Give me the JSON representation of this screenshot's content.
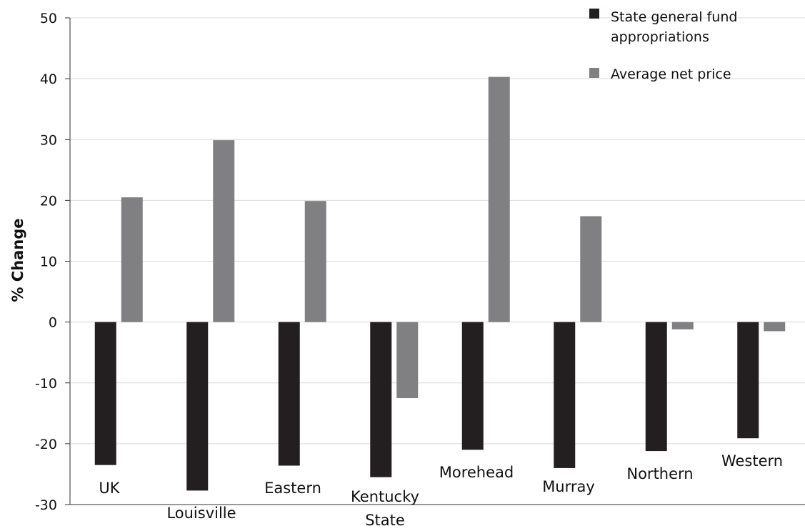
{
  "chart_data": {
    "type": "bar",
    "title": "",
    "ylabel": "% Change",
    "xlabel": "",
    "ylim": [
      -30,
      50
    ],
    "yticks": [
      50,
      40,
      30,
      20,
      10,
      0,
      -10,
      -20,
      -30
    ],
    "grid": true,
    "legend_position": "top-right",
    "categories": [
      [
        "UK"
      ],
      [
        "Louisville"
      ],
      [
        "Eastern"
      ],
      [
        "Kentucky",
        "State"
      ],
      [
        "Morehead"
      ],
      [
        "Murray"
      ],
      [
        "Northern"
      ],
      [
        "Western"
      ]
    ],
    "series": [
      {
        "name": [
          "State general fund",
          "appropriations"
        ],
        "color": "#231f20",
        "values": [
          -23.5,
          -27.7,
          -23.6,
          -25.5,
          -21.0,
          -24.0,
          -21.2,
          -19.1
        ]
      },
      {
        "name": [
          "Average net price"
        ],
        "color": "#808083",
        "values": [
          20.5,
          29.9,
          19.9,
          -12.5,
          40.3,
          17.4,
          -1.2,
          -1.5
        ]
      }
    ]
  }
}
